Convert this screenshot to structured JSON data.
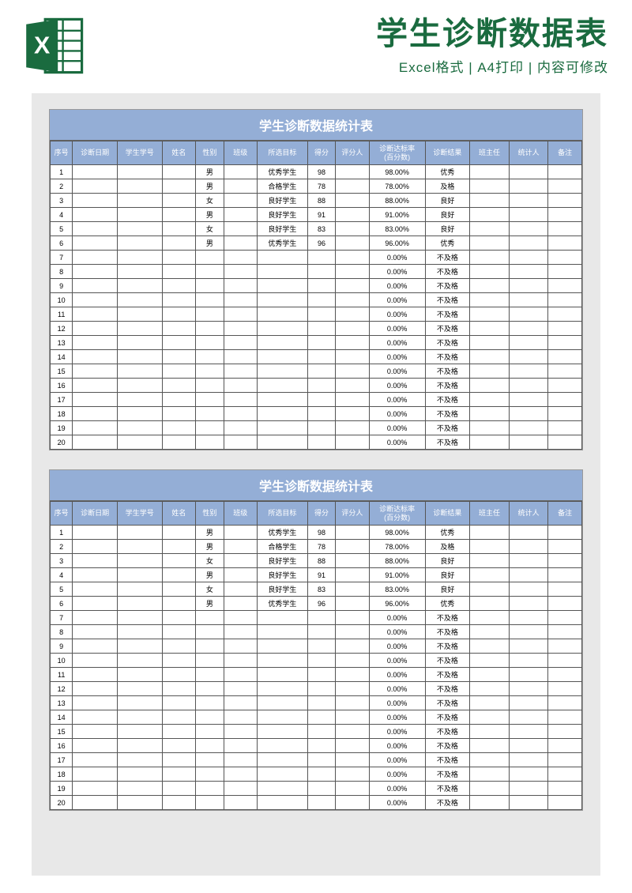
{
  "header": {
    "main_title": "学生诊断数据表",
    "sub_title": "Excel格式 | A4打印 | 内容可修改"
  },
  "colors": {
    "brand_green": "#1a6b3f",
    "table_header_bg": "#94aed6",
    "table_header_fg": "#ffffff",
    "sheet_bg": "#ffffff",
    "preview_bg": "#e8e8e8",
    "border": "#555555"
  },
  "table": {
    "title": "学生诊断数据统计表",
    "columns": [
      "序号",
      "诊断日期",
      "学生学号",
      "姓名",
      "性别",
      "班级",
      "所选目标",
      "得分",
      "评分人",
      "诊断达标率\n(百分数)",
      "诊断结果",
      "班主任",
      "统计人",
      "备注"
    ],
    "col_classes": [
      "col-seq",
      "col-date",
      "col-id",
      "col-name",
      "col-gender",
      "col-class",
      "col-target",
      "col-score",
      "col-rater",
      "col-rate",
      "col-result",
      "col-teacher",
      "col-stat",
      "col-note"
    ],
    "rows": [
      {
        "seq": "1",
        "gender": "男",
        "target": "优秀学生",
        "score": "98",
        "rate": "98.00%",
        "result": "优秀"
      },
      {
        "seq": "2",
        "gender": "男",
        "target": "合格学生",
        "score": "78",
        "rate": "78.00%",
        "result": "及格"
      },
      {
        "seq": "3",
        "gender": "女",
        "target": "良好学生",
        "score": "88",
        "rate": "88.00%",
        "result": "良好"
      },
      {
        "seq": "4",
        "gender": "男",
        "target": "良好学生",
        "score": "91",
        "rate": "91.00%",
        "result": "良好"
      },
      {
        "seq": "5",
        "gender": "女",
        "target": "良好学生",
        "score": "83",
        "rate": "83.00%",
        "result": "良好"
      },
      {
        "seq": "6",
        "gender": "男",
        "target": "优秀学生",
        "score": "96",
        "rate": "96.00%",
        "result": "优秀"
      },
      {
        "seq": "7",
        "rate": "0.00%",
        "result": "不及格"
      },
      {
        "seq": "8",
        "rate": "0.00%",
        "result": "不及格"
      },
      {
        "seq": "9",
        "rate": "0.00%",
        "result": "不及格"
      },
      {
        "seq": "10",
        "rate": "0.00%",
        "result": "不及格"
      },
      {
        "seq": "11",
        "rate": "0.00%",
        "result": "不及格"
      },
      {
        "seq": "12",
        "rate": "0.00%",
        "result": "不及格"
      },
      {
        "seq": "13",
        "rate": "0.00%",
        "result": "不及格"
      },
      {
        "seq": "14",
        "rate": "0.00%",
        "result": "不及格"
      },
      {
        "seq": "15",
        "rate": "0.00%",
        "result": "不及格"
      },
      {
        "seq": "16",
        "rate": "0.00%",
        "result": "不及格"
      },
      {
        "seq": "17",
        "rate": "0.00%",
        "result": "不及格"
      },
      {
        "seq": "18",
        "rate": "0.00%",
        "result": "不及格"
      },
      {
        "seq": "19",
        "rate": "0.00%",
        "result": "不及格"
      },
      {
        "seq": "20",
        "rate": "0.00%",
        "result": "不及格"
      }
    ]
  }
}
